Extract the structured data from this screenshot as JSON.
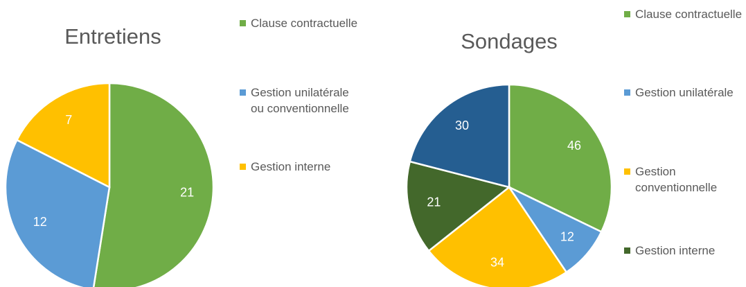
{
  "chart_data": [
    {
      "type": "pie",
      "title": "Entretiens",
      "categories": [
        "Clause contractuelle",
        "Gestion unilatérale ou conventionnelle",
        "Gestion interne"
      ],
      "values": [
        21,
        12,
        7
      ],
      "colors": [
        "#70ad47",
        "#5b9bd5",
        "#ffc000"
      ]
    },
    {
      "type": "pie",
      "title": "Sondages",
      "categories": [
        "Clause contractuelle",
        "Gestion unilatérale",
        "Gestion conventionnelle",
        "Gestion interne",
        null
      ],
      "values": [
        46,
        12,
        34,
        21,
        30
      ],
      "colors": [
        "#70ad47",
        "#5b9bd5",
        "#ffc000",
        "#43682b",
        "#255e91"
      ]
    }
  ]
}
